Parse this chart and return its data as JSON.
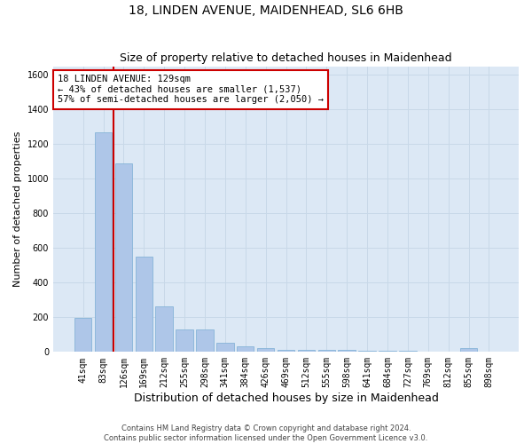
{
  "title": "18, LINDEN AVENUE, MAIDENHEAD, SL6 6HB",
  "subtitle": "Size of property relative to detached houses in Maidenhead",
  "xlabel": "Distribution of detached houses by size in Maidenhead",
  "ylabel": "Number of detached properties",
  "footer_line1": "Contains HM Land Registry data © Crown copyright and database right 2024.",
  "footer_line2": "Contains public sector information licensed under the Open Government Licence v3.0.",
  "categories": [
    "41sqm",
    "83sqm",
    "126sqm",
    "169sqm",
    "212sqm",
    "255sqm",
    "298sqm",
    "341sqm",
    "384sqm",
    "426sqm",
    "469sqm",
    "512sqm",
    "555sqm",
    "598sqm",
    "641sqm",
    "684sqm",
    "727sqm",
    "769sqm",
    "812sqm",
    "855sqm",
    "898sqm"
  ],
  "values": [
    195,
    1270,
    1090,
    550,
    265,
    130,
    130,
    55,
    30,
    20,
    10,
    10,
    10,
    10,
    5,
    5,
    5,
    0,
    0,
    20,
    0
  ],
  "bar_color": "#aec6e8",
  "bar_edge_color": "#7aadd4",
  "vline_color": "#cc0000",
  "vline_index": 1.5,
  "annotation_text": "18 LINDEN AVENUE: 129sqm\n← 43% of detached houses are smaller (1,537)\n57% of semi-detached houses are larger (2,050) →",
  "annotation_box_color": "#ffffff",
  "annotation_box_edge": "#cc0000",
  "ylim": [
    0,
    1650
  ],
  "yticks": [
    0,
    200,
    400,
    600,
    800,
    1000,
    1200,
    1400,
    1600
  ],
  "grid_color": "#c8d8e8",
  "bg_color": "#dce8f5",
  "title_fontsize": 10,
  "subtitle_fontsize": 9,
  "ylabel_fontsize": 8,
  "xlabel_fontsize": 9,
  "tick_fontsize": 7,
  "footer_fontsize": 6,
  "annot_fontsize": 7.5
}
